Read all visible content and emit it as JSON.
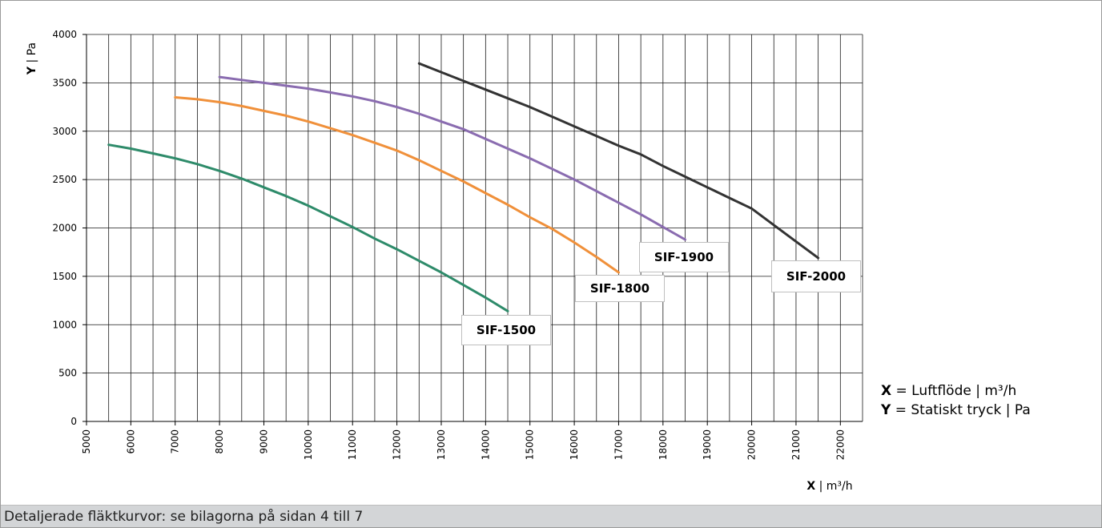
{
  "chart_data": {
    "type": "line",
    "title": "",
    "xlabel_bold": "X",
    "xlabel_rest": " | m³/h",
    "ylabel_bold": "Y",
    "ylabel_rest": " | Pa",
    "xlim": [
      5000,
      22500
    ],
    "ylim": [
      0,
      4000
    ],
    "x_ticks": [
      5000,
      6000,
      7000,
      8000,
      9000,
      10000,
      11000,
      12000,
      13000,
      14000,
      15000,
      16000,
      17000,
      18000,
      19000,
      20000,
      21000,
      22000
    ],
    "y_ticks": [
      0,
      500,
      1000,
      1500,
      2000,
      2500,
      3000,
      3500,
      4000
    ],
    "x_minor_step": 500,
    "grid": true,
    "series": [
      {
        "name": "SIF-1500",
        "color": "#2e8b6a",
        "x": [
          5500,
          6000,
          6500,
          7000,
          7500,
          8000,
          8500,
          9000,
          9500,
          10000,
          10500,
          11000,
          11500,
          12000,
          12500,
          13000,
          13500,
          14000,
          14500
        ],
        "y": [
          2860,
          2820,
          2770,
          2720,
          2660,
          2590,
          2510,
          2420,
          2330,
          2230,
          2120,
          2010,
          1890,
          1780,
          1660,
          1540,
          1410,
          1280,
          1140
        ]
      },
      {
        "name": "SIF-1800",
        "color": "#f0903a",
        "x": [
          7000,
          7500,
          8000,
          8500,
          9000,
          9500,
          10000,
          10500,
          11000,
          11500,
          12000,
          12500,
          13000,
          13500,
          14000,
          14500,
          15000,
          15500,
          16000,
          16500,
          17000
        ],
        "y": [
          3350,
          3330,
          3300,
          3260,
          3210,
          3160,
          3100,
          3030,
          2960,
          2880,
          2800,
          2700,
          2590,
          2480,
          2360,
          2240,
          2110,
          1990,
          1850,
          1700,
          1540
        ]
      },
      {
        "name": "SIF-1900",
        "color": "#8a6cb0",
        "x": [
          8000,
          8500,
          9000,
          9500,
          10000,
          10500,
          11000,
          11500,
          12000,
          12500,
          13000,
          13500,
          14000,
          14500,
          15000,
          15500,
          16000,
          16500,
          17000,
          17500,
          18000,
          18500
        ],
        "y": [
          3560,
          3530,
          3500,
          3470,
          3440,
          3400,
          3360,
          3310,
          3250,
          3180,
          3100,
          3020,
          2920,
          2820,
          2720,
          2610,
          2500,
          2380,
          2260,
          2140,
          2010,
          1880
        ]
      },
      {
        "name": "SIF-2000",
        "color": "#333333",
        "x": [
          12500,
          13000,
          13500,
          14000,
          14500,
          15000,
          15500,
          16000,
          16500,
          17000,
          17500,
          18000,
          18500,
          19000,
          19500,
          20000,
          20500,
          21000,
          21500
        ],
        "y": [
          3700,
          3610,
          3520,
          3430,
          3340,
          3250,
          3150,
          3050,
          2950,
          2850,
          2760,
          2640,
          2530,
          2420,
          2310,
          2200,
          2030,
          1860,
          1690
        ]
      }
    ],
    "annotations": [
      "SIF-1500",
      "SIF-1800",
      "SIF-1900",
      "SIF-2000"
    ]
  },
  "legend": {
    "x_key": "X",
    "x_text": " = Luftflöde | m³/h",
    "y_key": "Y",
    "y_text": " = Statiskt tryck | Pa"
  },
  "footer": {
    "text": "Detaljerade fläktkurvor: se bilagorna på sidan 4 till 7"
  }
}
